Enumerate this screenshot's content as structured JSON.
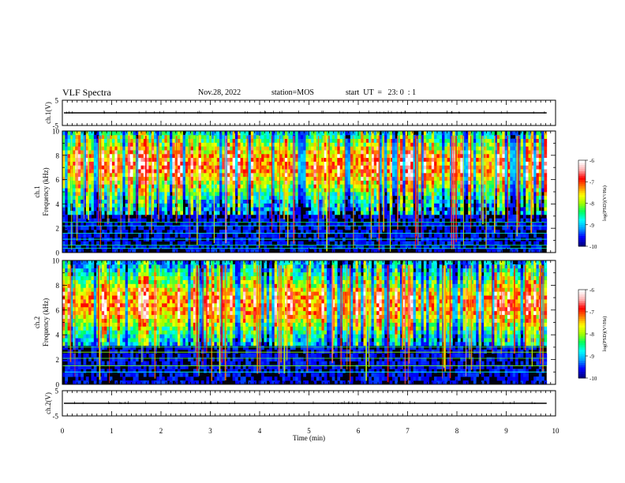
{
  "header": {
    "title": "VLF Spectra",
    "date": "Nov.28, 2022",
    "station": "station=MOS",
    "start": "start  UT  =   23: 0  : 1"
  },
  "chart_data": [
    {
      "type": "line",
      "name": "ch1-waveform",
      "ylabel": "ch.1(V)",
      "ylim": [
        -5,
        5
      ],
      "yticks": [
        "5",
        "-5"
      ],
      "xlim": [
        0,
        10
      ],
      "level": 0
    },
    {
      "type": "heatmap",
      "name": "ch1-spectrogram",
      "ylabel": "ch.1\nFrequency (kHz)",
      "ylabel_lines": [
        "ch.1",
        "Frequency (kHz)"
      ],
      "ylim": [
        0,
        10
      ],
      "yticks": [
        "0",
        "2",
        "4",
        "6",
        "8",
        "10"
      ],
      "xlim": [
        0,
        10
      ],
      "data_end_min": 9.82,
      "noise_floor_khz": 3.0,
      "colorbar": {
        "label": "log(PSD)(V²/Hz)",
        "ticks": [
          "-6",
          "-7",
          "-8",
          "-9",
          "-10"
        ],
        "range": [
          -10,
          -6
        ],
        "colors": [
          "#000080",
          "#0000ff",
          "#00a0ff",
          "#00ffff",
          "#00ff60",
          "#a0ff00",
          "#ffff00",
          "#ff8000",
          "#ff0000",
          "#ffb0b0",
          "#ffffff"
        ]
      }
    },
    {
      "type": "heatmap",
      "name": "ch2-spectrogram",
      "ylabel": "ch.2\nFrequency (kHz)",
      "ylabel_lines": [
        "ch.2",
        "Frequency (kHz)"
      ],
      "ylim": [
        0,
        10
      ],
      "yticks": [
        "0",
        "2",
        "4",
        "6",
        "8",
        "10"
      ],
      "xlim": [
        0,
        10
      ],
      "data_end_min": 9.82,
      "noise_floor_khz": 3.0,
      "colorbar": {
        "label": "log(PSD)(V²/Hz)",
        "ticks": [
          "-6",
          "-7",
          "-8",
          "-9",
          "-10"
        ],
        "range": [
          -10,
          -6
        ],
        "colors": [
          "#000080",
          "#0000ff",
          "#00a0ff",
          "#00ffff",
          "#00ff60",
          "#a0ff00",
          "#ffff00",
          "#ff8000",
          "#ff0000",
          "#ffb0b0",
          "#ffffff"
        ]
      }
    },
    {
      "type": "line",
      "name": "ch2-waveform",
      "ylabel": "ch.2(V)",
      "ylim": [
        -5,
        5
      ],
      "yticks": [
        "5",
        "-5"
      ],
      "xlim": [
        0,
        10
      ],
      "level": 0
    }
  ],
  "xaxis": {
    "label": "Time  (min)",
    "ticks": [
      "0",
      "1",
      "2",
      "3",
      "4",
      "5",
      "6",
      "7",
      "8",
      "9",
      "10"
    ]
  }
}
